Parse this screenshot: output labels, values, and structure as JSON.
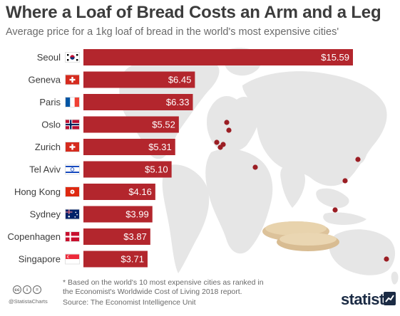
{
  "header": {
    "title": "Where a Loaf of Bread Costs an Arm and a Leg",
    "subtitle": "Average price for a 1kg loaf of bread in the world's most expensive cities'"
  },
  "chart_data": {
    "type": "bar",
    "orientation": "horizontal",
    "title": "Where a Loaf of Bread Costs an Arm and a Leg",
    "subtitle": "Average price for a 1kg loaf of bread in the world's most expensive cities'",
    "xlabel": "",
    "ylabel": "",
    "categories": [
      "Seoul",
      "Geneva",
      "Paris",
      "Oslo",
      "Zurich",
      "Tel Aviv",
      "Hong Kong",
      "Sydney",
      "Copenhagen",
      "Singapore"
    ],
    "values": [
      15.59,
      6.45,
      6.33,
      5.52,
      5.31,
      5.1,
      4.16,
      3.99,
      3.87,
      3.71
    ],
    "value_labels": [
      "$15.59",
      "$6.45",
      "$6.33",
      "$5.52",
      "$5.31",
      "$5.10",
      "$4.16",
      "$3.99",
      "$3.87",
      "$3.71"
    ],
    "flags": [
      "south-korea-flag",
      "switzerland-flag",
      "france-flag",
      "norway-flag",
      "switzerland-flag",
      "israel-flag",
      "hong-kong-flag",
      "australia-flag",
      "denmark-flag",
      "singapore-flag"
    ],
    "xlim": [
      0,
      15.59
    ],
    "grid": false,
    "legend": "none",
    "bar_color": "#b3262d",
    "map_color": "#e6e6e6",
    "marker_color": "#9b1e24"
  },
  "footer": {
    "footnote": "* Based on the world's 10 most expensive cities as ranked in the Economist's Worldwide Cost of Living 2018 report.",
    "source": "Source: The Economist Intelligence Unit",
    "handle": "@StatistaCharts",
    "license_icons": [
      "cc",
      "i",
      "="
    ],
    "brand": "statista",
    "brand_color": "#1b2b44"
  }
}
